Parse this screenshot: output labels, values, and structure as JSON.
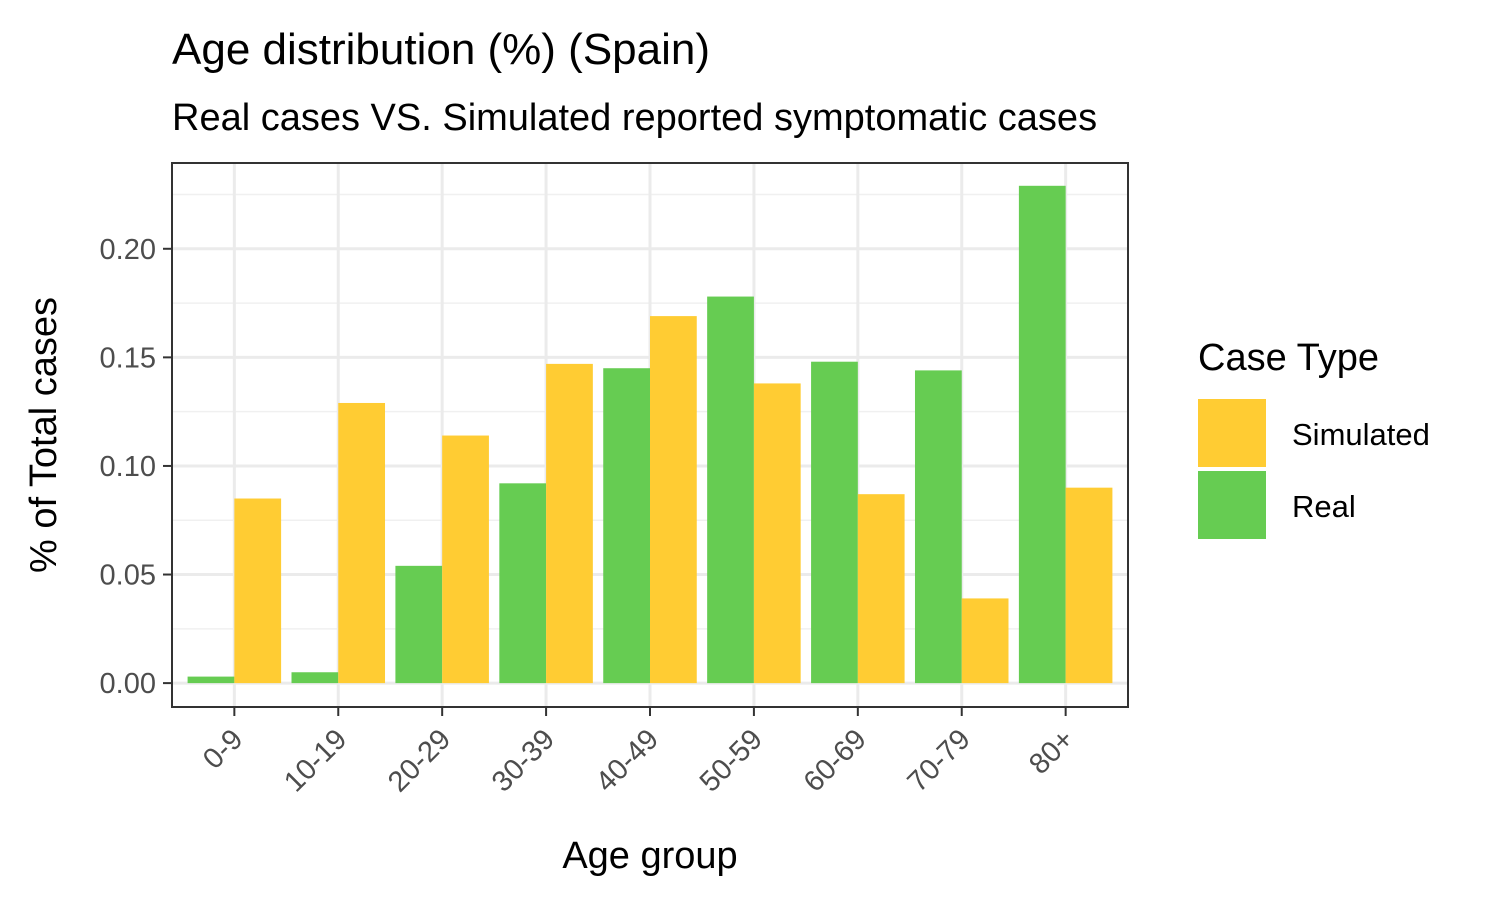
{
  "chart_data": {
    "type": "bar",
    "title": "Age distribution (%) (Spain)",
    "subtitle": "Real cases VS. Simulated reported symptomatic cases",
    "xlabel": "Age group",
    "ylabel": "% of Total cases",
    "categories": [
      "0-9",
      "10-19",
      "20-29",
      "30-39",
      "40-49",
      "50-59",
      "60-69",
      "70-79",
      "80+"
    ],
    "series": [
      {
        "name": "Real",
        "color": "#66cc52",
        "values": [
          0.003,
          0.005,
          0.054,
          0.092,
          0.145,
          0.178,
          0.148,
          0.144,
          0.229
        ]
      },
      {
        "name": "Simulated",
        "color": "#ffcc33",
        "values": [
          0.085,
          0.129,
          0.114,
          0.147,
          0.169,
          0.138,
          0.087,
          0.039,
          0.09
        ]
      }
    ],
    "ylim": [
      -0.011,
      0.2395
    ],
    "yticks": [
      0.0,
      0.05,
      0.1,
      0.15,
      0.2
    ],
    "ytick_labels": [
      "0.00",
      "0.05",
      "0.10",
      "0.15",
      "0.20"
    ],
    "grid": true,
    "legend": {
      "title": "Case Type",
      "position": "right",
      "entries": [
        {
          "label": "Simulated",
          "color": "#ffcc33"
        },
        {
          "label": "Real",
          "color": "#66cc52"
        }
      ]
    }
  }
}
